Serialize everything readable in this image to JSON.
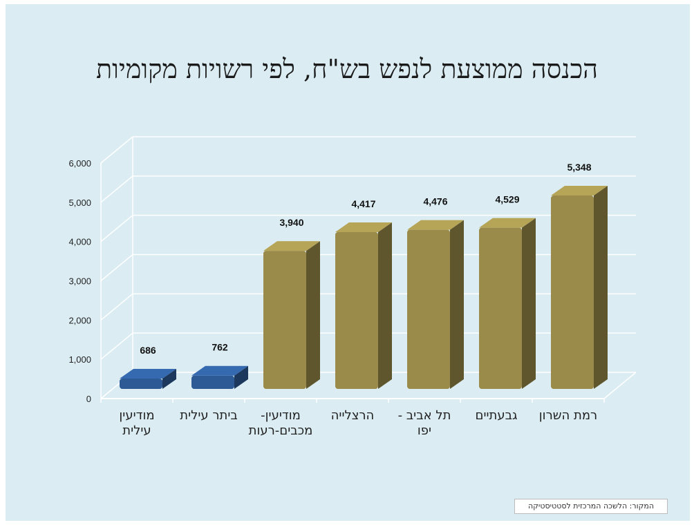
{
  "chart_data": {
    "type": "bar",
    "title": "הכנסה ממוצעת לנפש בש\"ח, לפי רשויות מקומיות",
    "categories": [
      "מודיעין עילית",
      "ביתר עילית",
      "מודיעין-מכבים-רעות",
      "הרצלייה",
      "תל אביב - יפו",
      "גבעתיים",
      "רמת השרון"
    ],
    "category_labels": [
      [
        "מודיעין",
        "עילית"
      ],
      [
        "ביתר עילית"
      ],
      [
        "מודיעין-",
        "מכבים-רעות"
      ],
      [
        "הרצלייה"
      ],
      [
        "תל אביב -",
        "יפו"
      ],
      [
        "גבעתיים"
      ],
      [
        "רמת השרון"
      ]
    ],
    "values": [
      686,
      762,
      3940,
      4417,
      4476,
      4529,
      5348
    ],
    "value_labels": [
      "686",
      "762",
      "3,940",
      "4,417",
      "4,476",
      "4,529",
      "5,348"
    ],
    "bar_colors": [
      "#2d5a95",
      "#2d5a95",
      "#9a8b4a",
      "#9a8b4a",
      "#9a8b4a",
      "#9a8b4a",
      "#9a8b4a"
    ],
    "yticks": [
      0,
      1000,
      2000,
      3000,
      4000,
      5000,
      6000
    ],
    "ytick_labels": [
      "0",
      "1,000",
      "2,000",
      "3,000",
      "4,000",
      "5,000",
      "6,000"
    ],
    "ylim": [
      0,
      6000
    ],
    "grid": true,
    "style": "3d",
    "xlabel": "",
    "ylabel": ""
  },
  "source_note": "המקור: הלשכה המרכזית לסטטיסטיקה",
  "colors": {
    "background": "#dbedf3",
    "blue_bar": "#2d5a95",
    "gold_bar": "#9a8b4a"
  }
}
